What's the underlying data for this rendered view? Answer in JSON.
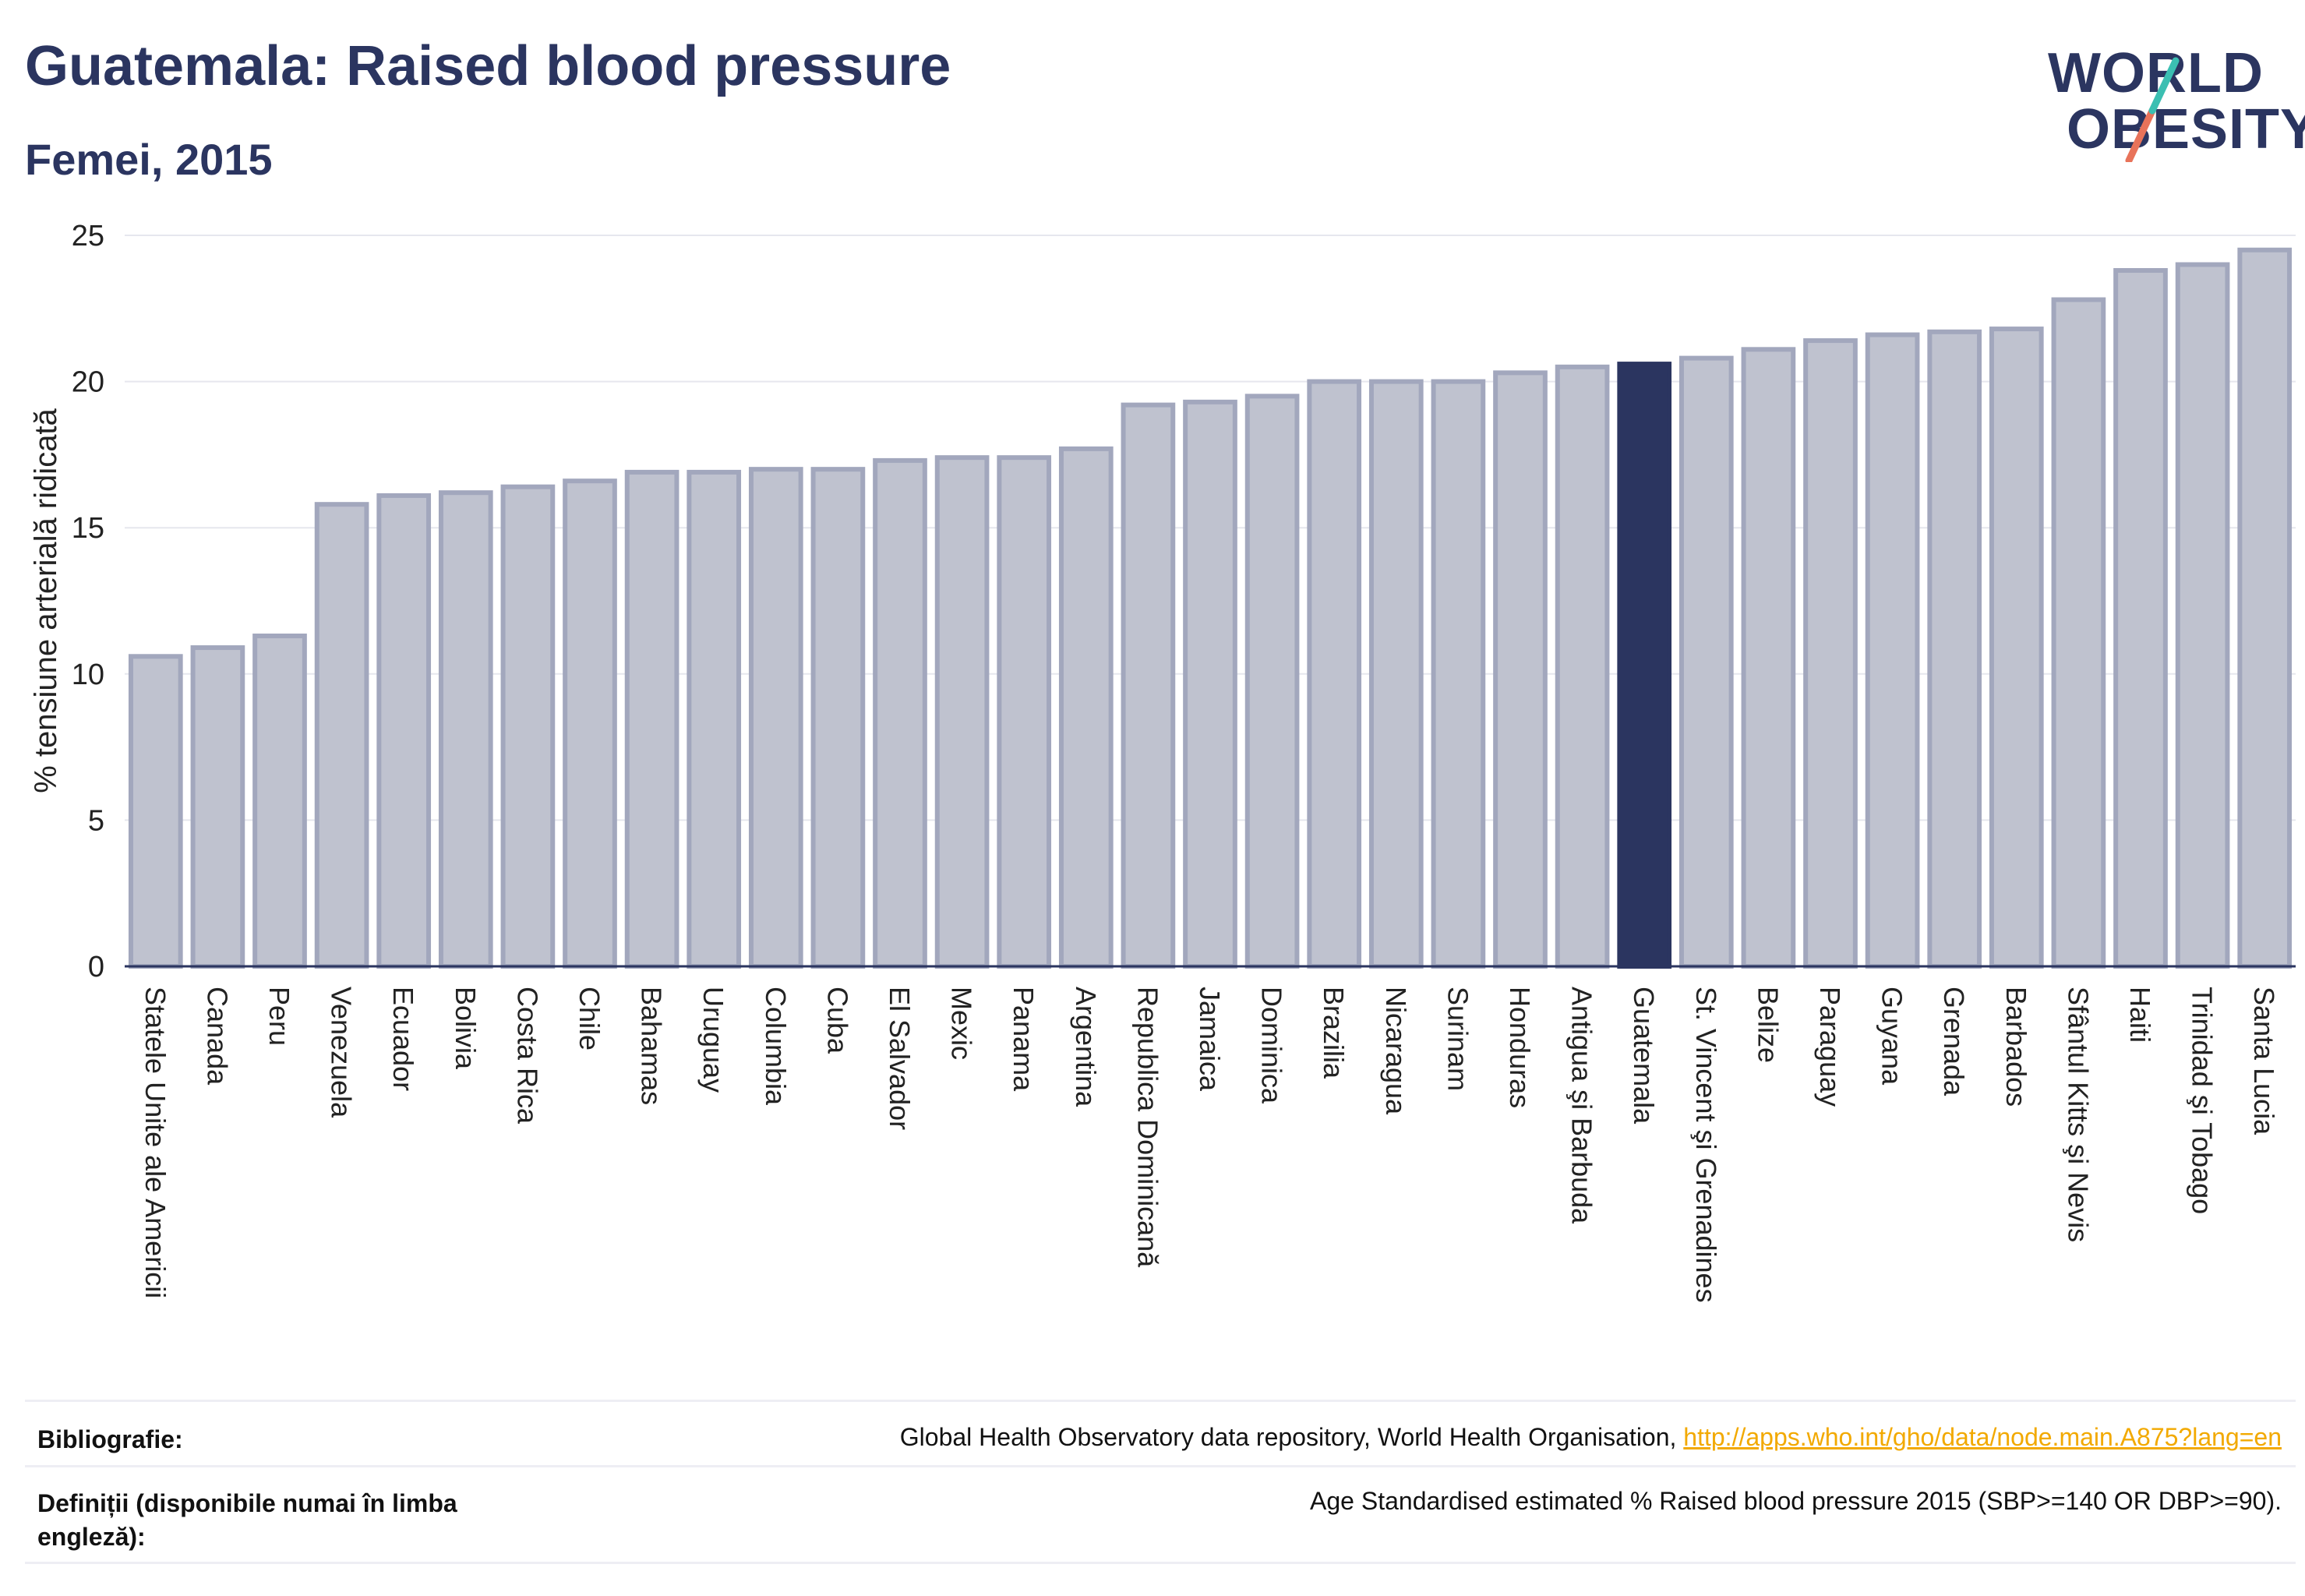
{
  "header": {
    "title": "Guatemala: Raised blood pressure",
    "subtitle": "Femei, 2015"
  },
  "logo": {
    "line1": "WORLD",
    "line2": "OBESITY",
    "accent_colors": [
      "#3bbfb2",
      "#e8735a"
    ]
  },
  "colors": {
    "bar": "#bfc2cf",
    "bar_border": "#a2a7bd",
    "highlight": "#2b3560",
    "grid": "#e6e7ee",
    "axis": "#2b3560"
  },
  "chart_data": {
    "type": "bar",
    "title": "Guatemala: Raised blood pressure",
    "subtitle": "Femei, 2015",
    "xlabel": "",
    "ylabel": "% tensiune arterială ridicată",
    "ylim": [
      0,
      25
    ],
    "yticks": [
      0,
      5,
      10,
      15,
      20,
      25
    ],
    "grid": true,
    "highlight": "Guatemala",
    "categories": [
      "Statele Unite ale Americii",
      "Canada",
      "Peru",
      "Venezuela",
      "Ecuador",
      "Bolivia",
      "Costa Rica",
      "Chile",
      "Bahamas",
      "Uruguay",
      "Columbia",
      "Cuba",
      "El Salvador",
      "Mexic",
      "Panama",
      "Argentina",
      "Republica Dominicană",
      "Jamaica",
      "Dominica",
      "Brazilia",
      "Nicaragua",
      "Surinam",
      "Honduras",
      "Antigua şi Barbuda",
      "Guatemala",
      "St. Vincent şi Grenadines",
      "Belize",
      "Paraguay",
      "Guyana",
      "Grenada",
      "Barbados",
      "Sfântul Kitts şi Nevis",
      "Haiti",
      "Trinidad şi Tobago",
      "Santa Lucia"
    ],
    "values": [
      10.6,
      10.9,
      11.3,
      15.8,
      16.1,
      16.2,
      16.4,
      16.6,
      16.9,
      16.9,
      17.0,
      17.0,
      17.3,
      17.4,
      17.4,
      17.7,
      19.2,
      19.3,
      19.5,
      20.0,
      20.0,
      20.0,
      20.3,
      20.5,
      20.6,
      20.8,
      21.1,
      21.4,
      21.6,
      21.7,
      21.8,
      22.8,
      23.8,
      24.0,
      24.5
    ]
  },
  "footer": {
    "bibliography_label": "Bibliografie:",
    "bibliography_text": "Global Health Observatory data repository, World Health Organisation, ",
    "bibliography_link": "http://apps.who.int/gho/data/node.main.A875?lang=en",
    "definitions_label": "Definiții (disponibile numai în limba engleză):",
    "definitions_text": "Age Standardised estimated % Raised blood pressure 2015 (SBP>=140 OR DBP>=90)."
  }
}
